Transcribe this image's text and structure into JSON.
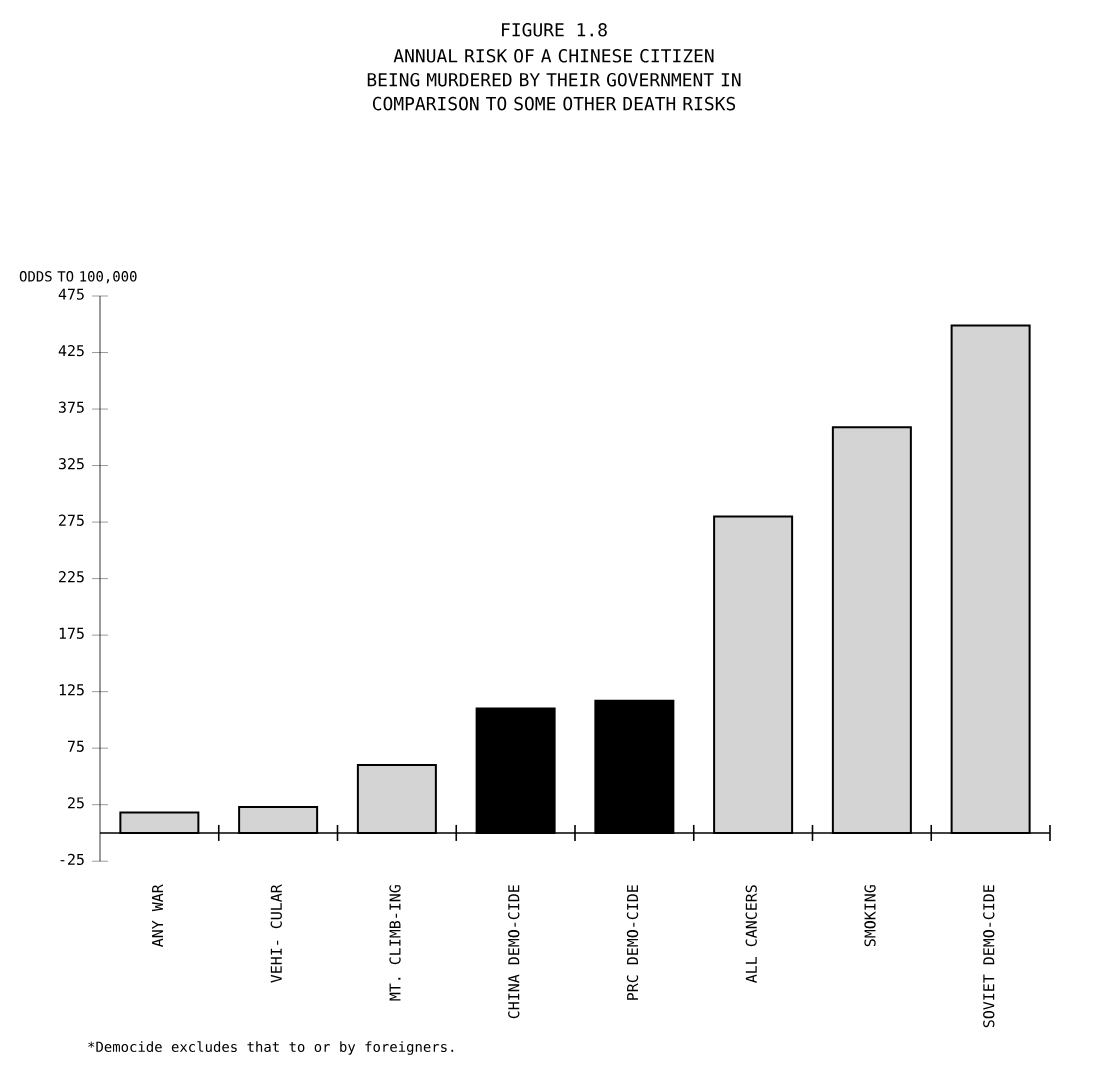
{
  "chart_data": {
    "type": "bar",
    "title": "FIGURE 1.8",
    "subtitle": "ANNUAL RISK OF A CHINESE CITIZEN BEING MURDERED BY THEIR GOVERNMENT IN COMPARISON TO SOME OTHER DEATH RISKS",
    "ylabel": "ODDS TO 100,000",
    "categories": [
      "ANY WAR",
      "VEHI- CULAR",
      "MT. CLIMB-ING",
      "CHINA DEMO-CIDE",
      "PRC  DEMO-CIDE",
      "ALL CANCERS",
      "SMOKING",
      "SOVIET DEMO-CIDE"
    ],
    "values": [
      18,
      23,
      60,
      110,
      117,
      280,
      359,
      449
    ],
    "colors": [
      "#d4d4d4",
      "#d4d4d4",
      "#d4d4d4",
      "#000000",
      "#000000",
      "#d4d4d4",
      "#d4d4d4",
      "#d4d4d4"
    ],
    "ylim": [
      -25,
      475
    ],
    "yticks": [
      -25,
      25,
      75,
      125,
      175,
      225,
      275,
      325,
      375,
      425,
      475
    ],
    "annotations": [
      "*Democide excludes that to or by foreigners."
    ]
  }
}
